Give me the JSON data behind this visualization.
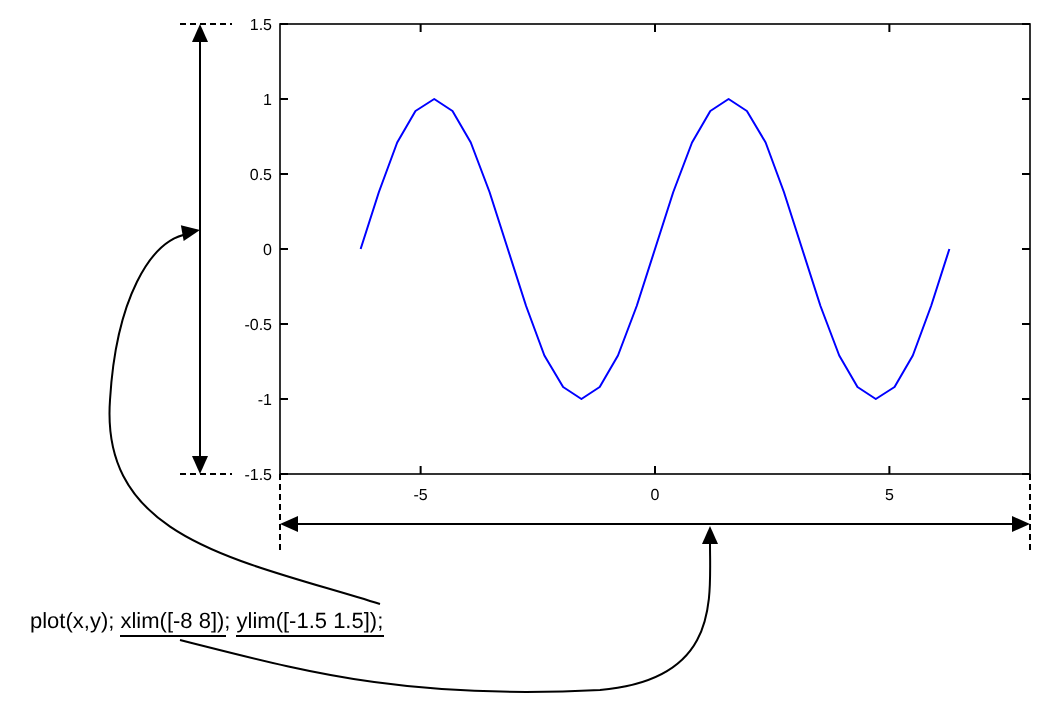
{
  "chart_data": {
    "type": "line",
    "x": [
      -6.28,
      -5.89,
      -5.5,
      -5.11,
      -4.71,
      -4.32,
      -3.93,
      -3.53,
      -3.14,
      -2.75,
      -2.36,
      -1.96,
      -1.57,
      -1.18,
      -0.79,
      -0.39,
      0,
      0.39,
      0.79,
      1.18,
      1.57,
      1.96,
      2.36,
      2.75,
      3.14,
      3.53,
      3.93,
      4.32,
      4.71,
      5.11,
      5.5,
      5.89,
      6.28
    ],
    "series": [
      {
        "color": "#0000ff",
        "values": [
          0,
          0.38,
          0.71,
          0.92,
          1,
          0.92,
          0.71,
          0.38,
          0,
          -0.38,
          -0.71,
          -0.92,
          -1,
          -0.92,
          -0.71,
          -0.38,
          0,
          0.38,
          0.71,
          0.92,
          1,
          0.92,
          0.71,
          0.38,
          0,
          -0.38,
          -0.71,
          -0.92,
          -1,
          -0.92,
          -0.71,
          -0.38,
          0
        ]
      }
    ],
    "xlim": [
      -8,
      8
    ],
    "xticks": [
      -5,
      0,
      5
    ],
    "ylim": [
      -1.5,
      1.5
    ],
    "yticks": [
      -1.5,
      -1,
      -0.5,
      0,
      0.5,
      1,
      1.5
    ],
    "grid": false,
    "marker": "none",
    "line_style": "solid",
    "annotations": [
      "plot(x,y); xlim([-8 8]); ylim([-1.5 1.5]);"
    ]
  }
}
